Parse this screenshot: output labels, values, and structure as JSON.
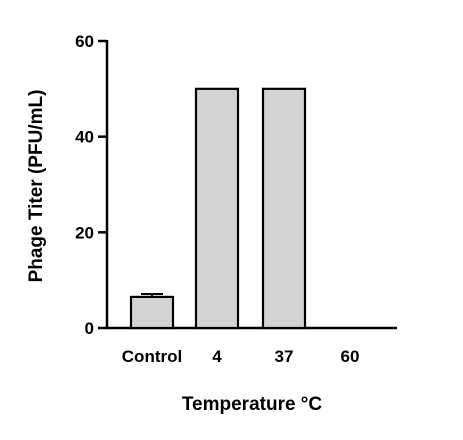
{
  "chart_data": {
    "type": "bar",
    "categories": [
      "Control",
      "4",
      "37",
      "60"
    ],
    "values": [
      6.5,
      50,
      50,
      0
    ],
    "error": [
      0.6,
      0,
      0,
      0
    ],
    "xlabel": "Temperature °C",
    "ylabel": "Phage Titer  (PFU/mL)",
    "ylim": [
      0,
      60
    ],
    "yticks": [
      0,
      20,
      40,
      60
    ],
    "bar_color": "#d3d3d3",
    "edge_color": "#000000",
    "grid": false
  }
}
